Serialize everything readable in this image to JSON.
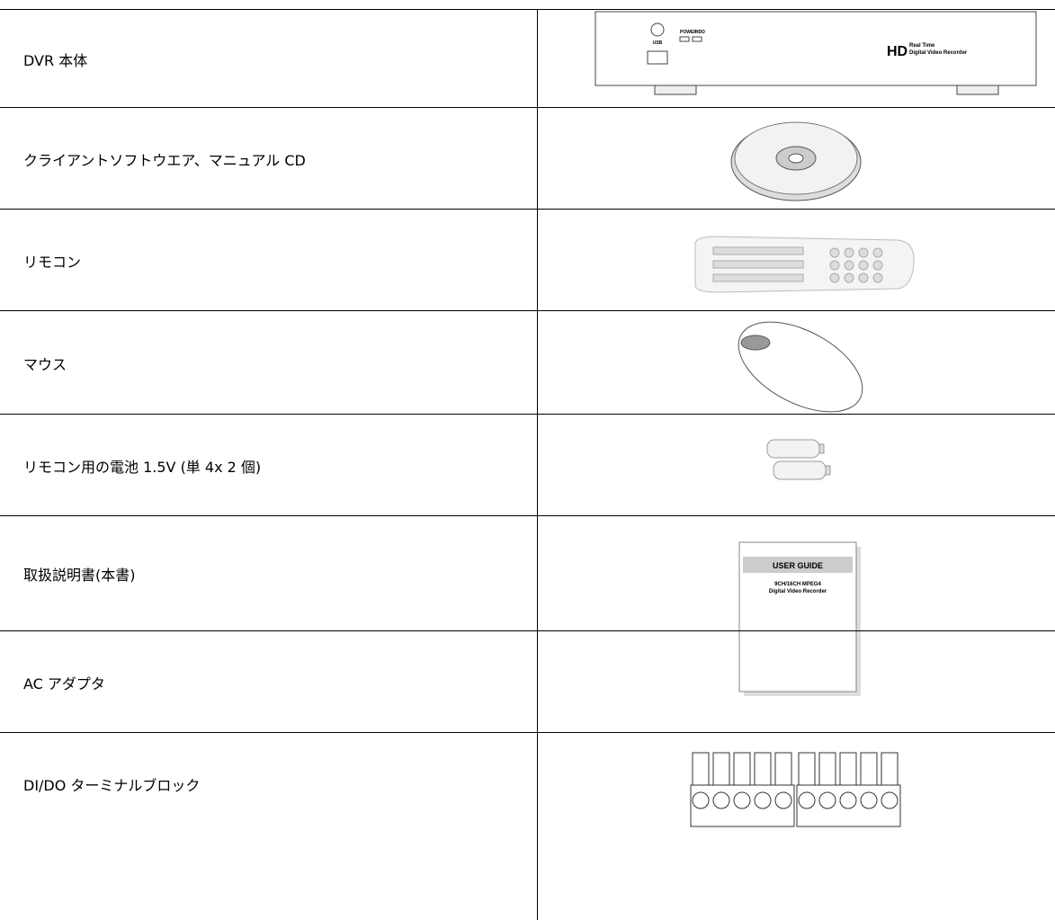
{
  "table": {
    "rows": [
      {
        "item": "DVR 本体",
        "image_text": [
          "USB",
          "POWER",
          "HDD",
          "HD",
          "Real Time",
          "Digital Video Recorder"
        ]
      },
      {
        "item": "クライアントソフトウエア、マニュアル CD"
      },
      {
        "item": "リモコン"
      },
      {
        "item": "マウス"
      },
      {
        "item": "リモコン用の電池 1.5V (単 4x 2 個)"
      },
      {
        "item": "取扱説明書(本書)",
        "image_text": [
          "USER GUIDE",
          "9CH/16CH MPEG4",
          "Digital Video Recorder"
        ]
      },
      {
        "item": "AC アダプタ"
      },
      {
        "item": "DI/DO ターミナルブロック"
      }
    ]
  }
}
